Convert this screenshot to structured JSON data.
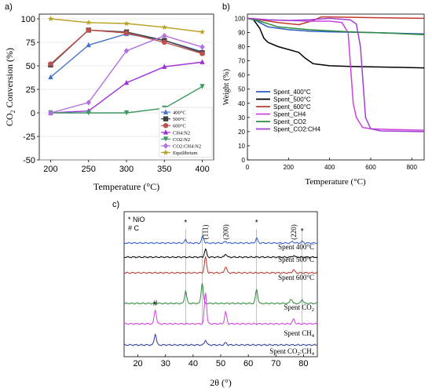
{
  "panels": {
    "a": "a)",
    "b": "b)",
    "c": "c)"
  },
  "chart_data": [
    {
      "type": "line",
      "panel_label": "a)",
      "xlabel": "Temperature (°C)",
      "ylabel": "CO2 Conversion (%)",
      "ylabel_main": "CO",
      "ylabel_sub": "2",
      "ylabel_rest": " Conversion (%)",
      "xlim": [
        185,
        415
      ],
      "ylim": [
        -50,
        105
      ],
      "xticks": [
        200,
        250,
        300,
        350,
        400
      ],
      "yticks": [
        -50,
        -25,
        0,
        25,
        50,
        75,
        100
      ],
      "x": [
        200,
        250,
        300,
        350,
        400
      ],
      "legend_position": "bottom-right",
      "series": [
        {
          "name": "400°C",
          "color": "#4472c4",
          "marker": "triangle",
          "values": [
            38,
            72,
            84,
            77,
            65
          ]
        },
        {
          "name": "500°C",
          "color": "#404040",
          "marker": "square",
          "values": [
            51,
            88,
            86,
            77,
            64
          ]
        },
        {
          "name": "600°C",
          "color": "#c0504d",
          "marker": "circle",
          "values": [
            52,
            88,
            85,
            75,
            63
          ]
        },
        {
          "name": "CH4:N2",
          "color": "#9b30d9",
          "marker": "triangle",
          "values": [
            0,
            2,
            32,
            49,
            54
          ]
        },
        {
          "name": "CO2:N2",
          "color": "#3c9a5f",
          "marker": "triangle-down",
          "values": [
            0,
            0,
            0,
            5,
            28
          ]
        },
        {
          "name": "CO2:CH4:N2",
          "color": "#b070e0",
          "marker": "diamond",
          "values": [
            0,
            11,
            66,
            82,
            70
          ]
        },
        {
          "name": "Equilibrium",
          "color": "#b8a020",
          "marker": "star",
          "values": [
            100,
            96,
            95,
            91,
            86
          ]
        }
      ]
    },
    {
      "type": "line",
      "panel_label": "b)",
      "xlabel": "Temperature (°C)",
      "ylabel": "Weight (%)",
      "xlim": [
        0,
        860
      ],
      "ylim": [
        0,
        103
      ],
      "xticks": [
        0,
        200,
        400,
        600,
        800
      ],
      "yticks": [
        0,
        10,
        20,
        30,
        40,
        50,
        60,
        70,
        80,
        90,
        100
      ],
      "legend_position": "center-left",
      "series": [
        {
          "name": "Spent_400°C",
          "color": "#2e5cc8",
          "points": [
            [
              0,
              100
            ],
            [
              30,
              99.5
            ],
            [
              60,
              97
            ],
            [
              100,
              94
            ],
            [
              200,
              92
            ],
            [
              300,
              91
            ],
            [
              400,
              90.5
            ],
            [
              600,
              90
            ],
            [
              860,
              89
            ]
          ]
        },
        {
          "name": "Spent_500°C",
          "color": "#000000",
          "points": [
            [
              0,
              100
            ],
            [
              30,
              99
            ],
            [
              60,
              93
            ],
            [
              80,
              86
            ],
            [
              100,
              83
            ],
            [
              150,
              80
            ],
            [
              200,
              78
            ],
            [
              250,
              76
            ],
            [
              280,
              72
            ],
            [
              320,
              68
            ],
            [
              400,
              66.5
            ],
            [
              500,
              66
            ],
            [
              700,
              65.5
            ],
            [
              860,
              65
            ]
          ]
        },
        {
          "name": "Spent_600°C",
          "color": "#c0392b",
          "points": [
            [
              0,
              100
            ],
            [
              60,
              99
            ],
            [
              150,
              97
            ],
            [
              250,
              95.5
            ],
            [
              320,
              98.5
            ],
            [
              360,
              101
            ],
            [
              400,
              101
            ],
            [
              600,
              100.5
            ],
            [
              860,
              100
            ]
          ]
        },
        {
          "name": "Spent_CH4",
          "color": "#d040e0",
          "points": [
            [
              0,
              100
            ],
            [
              100,
              99
            ],
            [
              200,
              98.5
            ],
            [
              300,
              98
            ],
            [
              400,
              98
            ],
            [
              460,
              97
            ],
            [
              490,
              90
            ],
            [
              505,
              60
            ],
            [
              515,
              40
            ],
            [
              530,
              30
            ],
            [
              560,
              23
            ],
            [
              600,
              22
            ],
            [
              700,
              21.5
            ],
            [
              860,
              21
            ]
          ]
        },
        {
          "name": "Spent_CO2",
          "color": "#2e8b3e",
          "points": [
            [
              0,
              100
            ],
            [
              60,
              98
            ],
            [
              150,
              94
            ],
            [
              300,
              92
            ],
            [
              500,
              90.5
            ],
            [
              700,
              89.5
            ],
            [
              860,
              88.5
            ]
          ]
        },
        {
          "name": "Spent_CO2:CH4",
          "color": "#a040d0",
          "points": [
            [
              0,
              100
            ],
            [
              100,
              99
            ],
            [
              200,
              98.5
            ],
            [
              300,
              99
            ],
            [
              400,
              100
            ],
            [
              500,
              99
            ],
            [
              530,
              96
            ],
            [
              550,
              80
            ],
            [
              565,
              50
            ],
            [
              575,
              30
            ],
            [
              600,
              22
            ],
            [
              650,
              20.5
            ],
            [
              860,
              20
            ]
          ]
        }
      ]
    },
    {
      "type": "line",
      "panel_label": "c)",
      "xlabel": "2θ (°)",
      "xlim": [
        15,
        85
      ],
      "xticks": [
        20,
        30,
        40,
        50,
        60,
        70,
        80
      ],
      "legend_notes": [
        "* NiO",
        "# C"
      ],
      "peak_labels": [
        "(111)",
        "(200)",
        "(220)"
      ],
      "peak_label_x": [
        44.5,
        51.8,
        76.4
      ],
      "marker_labels": [
        {
          "symbol": "*",
          "x": 37.3
        },
        {
          "symbol": "*",
          "x": 63.0
        },
        {
          "symbol": "*",
          "x": 79.5
        },
        {
          "symbol": "#",
          "x": 26.3
        }
      ],
      "reference_lines_x": [
        37.3,
        43.3,
        63.0,
        79.5
      ],
      "series": [
        {
          "name": "Spent 400°C",
          "color": "#2e5cc8",
          "peaks": [
            [
              37.3,
              4
            ],
            [
              43.5,
              9
            ],
            [
              51.8,
              2
            ],
            [
              63,
              6
            ],
            [
              76,
              2
            ],
            [
              79.5,
              2
            ]
          ]
        },
        {
          "name": "Spent 500°C",
          "color": "#000000",
          "peaks": [
            [
              44.5,
              10
            ],
            [
              51.8,
              4
            ],
            [
              76.4,
              2
            ]
          ]
        },
        {
          "name": "Spent 600°C",
          "color": "#b03a2e",
          "peaks": [
            [
              44.5,
              20
            ],
            [
              51.8,
              8
            ],
            [
              76.4,
              4
            ]
          ]
        },
        {
          "name": "Spent CO2",
          "label_main": "Spent CO",
          "label_sub": "2",
          "color": "#2e8b3e",
          "peaks": [
            [
              37.3,
              16
            ],
            [
              43.3,
              26
            ],
            [
              63,
              18
            ],
            [
              75.5,
              6
            ],
            [
              79.5,
              5
            ]
          ]
        },
        {
          "name": "Spent CH4",
          "label_main": "Spent CH",
          "label_sub": "4",
          "color": "#d040e0",
          "peaks": [
            [
              26.3,
              18
            ],
            [
              44.5,
              40
            ],
            [
              51.8,
              15
            ],
            [
              76.4,
              6
            ]
          ]
        },
        {
          "name": "Spent CO2:CH4",
          "label_main": "Spent CO",
          "label_sub": "2",
          "label_mid": ":CH",
          "label_sub2": "4",
          "color": "#2e3a9a",
          "peaks": [
            [
              26.3,
              14
            ],
            [
              44.5,
              6
            ],
            [
              51.8,
              3
            ]
          ]
        }
      ]
    }
  ]
}
